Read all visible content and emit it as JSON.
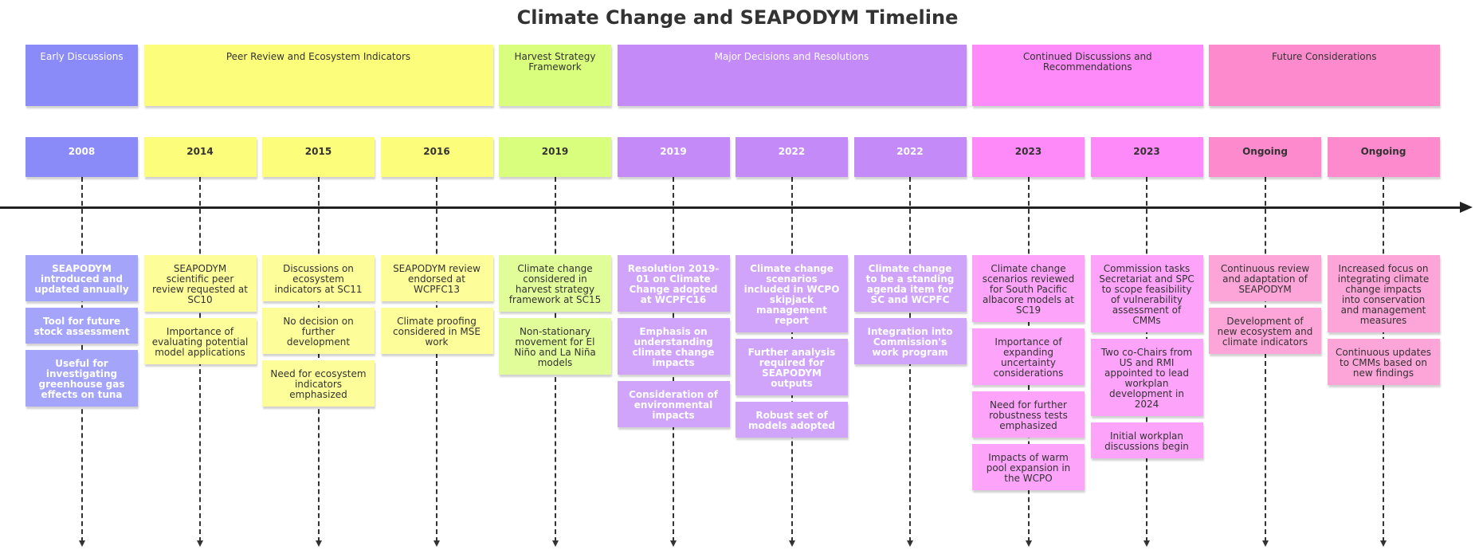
{
  "title": "Climate Change and SEAPODYM Timeline",
  "sections": [
    {
      "label": "Early Discussions",
      "color": "#8a8af8",
      "text": "light"
    },
    {
      "label": "Peer Review and Ecosystem Indicators",
      "color": "#fdfd7c",
      "text": "dark"
    },
    {
      "label": "Harvest Strategy Framework",
      "color": "#d9fd7c",
      "text": "dark"
    },
    {
      "label": "Major Decisions and Resolutions",
      "color": "#c38af8",
      "text": "light"
    },
    {
      "label": "Continued Discussions and Recommendations",
      "color": "#fd8af8",
      "text": "dark"
    },
    {
      "label": "Future Considerations",
      "color": "#fd8acd",
      "text": "dark"
    }
  ],
  "periods": [
    {
      "label": "2008",
      "section": 0,
      "events": [
        "SEAPODYM introduced and updated annually",
        "Tool for future stock assessment",
        "Useful for investigating greenhouse gas effects on tuna"
      ]
    },
    {
      "label": "2014",
      "section": 1,
      "events": [
        "SEAPODYM scientific peer review requested at SC10",
        "Importance of evaluating potential model applications"
      ]
    },
    {
      "label": "2015",
      "section": 1,
      "events": [
        "Discussions on ecosystem indicators at SC11",
        "No decision on further development",
        "Need for ecosystem indicators emphasized"
      ]
    },
    {
      "label": "2016",
      "section": 1,
      "events": [
        "SEAPODYM review endorsed at WCPFC13",
        "Climate proofing considered in MSE work"
      ]
    },
    {
      "label": "2019",
      "section": 2,
      "events": [
        "Climate change considered in harvest strategy framework at SC15",
        "Non-stationary movement for El Niño and La Niña models"
      ]
    },
    {
      "label": "2019",
      "section": 3,
      "events": [
        "Resolution 2019-01 on Climate Change adopted at WCPFC16",
        "Emphasis on understanding climate change impacts",
        "Consideration of environmental impacts"
      ]
    },
    {
      "label": "2022",
      "section": 3,
      "events": [
        "Climate change scenarios included in WCPO skipjack management report",
        "Further analysis required for SEAPODYM outputs",
        "Robust set of models adopted"
      ]
    },
    {
      "label": "2022",
      "section": 3,
      "events": [
        "Climate change to be a standing agenda item for SC and WCPFC",
        "Integration into Commission's work program"
      ]
    },
    {
      "label": "2023",
      "section": 4,
      "events": [
        "Climate change scenarios reviewed for South Pacific albacore models at SC19",
        "Importance of expanding uncertainty considerations",
        "Need for further robustness tests emphasized",
        "Impacts of warm pool expansion in the WCPO"
      ]
    },
    {
      "label": "2023",
      "section": 4,
      "events": [
        "Commission tasks Secretariat and SPC to scope feasibility of vulnerability assessment of CMMs",
        "Two co-Chairs from US and RMI appointed to lead workplan development in 2024",
        "Initial workplan discussions begin"
      ]
    },
    {
      "label": "Ongoing",
      "section": 5,
      "events": [
        "Continuous review and adaptation of SEAPODYM",
        "Development of new ecosystem and climate indicators"
      ]
    },
    {
      "label": "Ongoing",
      "section": 5,
      "events": [
        "Increased focus on integrating climate change impacts into conservation and management measures",
        "Continuous updates to CMMs based on new findings"
      ]
    }
  ]
}
